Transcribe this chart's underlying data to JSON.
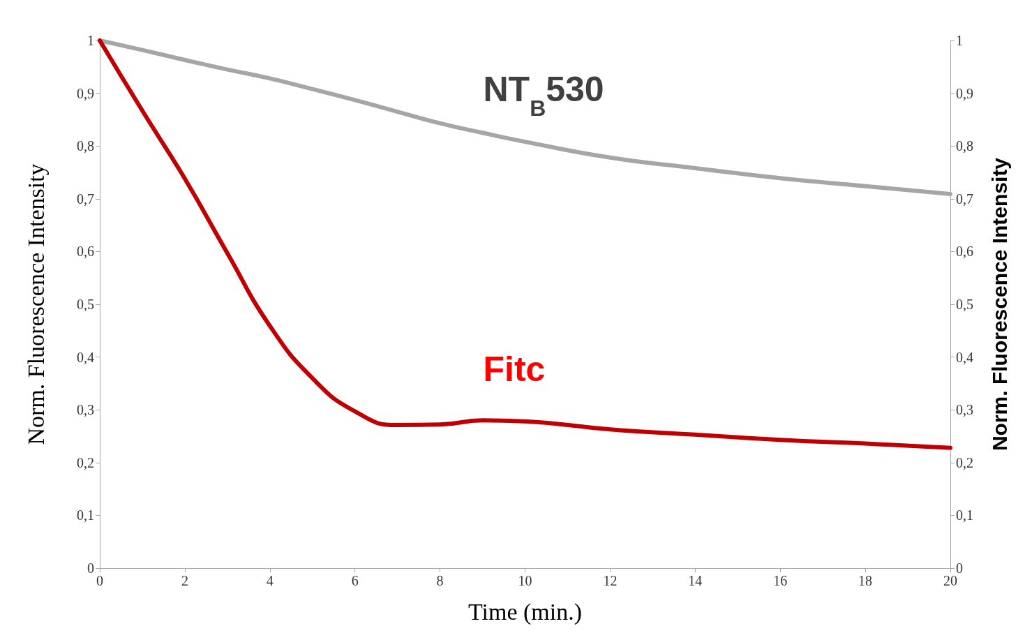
{
  "chart_data": {
    "type": "line",
    "xlabel": "Time (min.)",
    "ylabel": "Norm. Fluorescence Intensity",
    "y2label": "Norm. Fluorescence Intensity",
    "x": [
      0,
      1,
      2,
      3,
      4,
      5,
      6,
      7,
      8,
      9,
      10,
      12,
      14,
      16,
      18,
      20
    ],
    "series": [
      {
        "name": "NT$_{B}$530",
        "color": "#a6a6a6",
        "values": [
          1,
          0.982,
          0.963,
          0.945,
          0.928,
          0.908,
          0.887,
          0.865,
          0.843,
          0.825,
          0.808,
          0.778,
          0.758,
          0.739,
          0.724,
          0.709
        ]
      },
      {
        "name": "Fitc",
        "color": "#c00000",
        "values": [
          1,
          0.867,
          0.738,
          0.597,
          0.459,
          0.36,
          0.297,
          0.271,
          0.272,
          0.28,
          0.278,
          0.263,
          0.253,
          0.243,
          0.236,
          0.228
        ]
      }
    ],
    "xlim": [
      0,
      20
    ],
    "xticks": [
      0,
      2,
      4,
      6,
      8,
      10,
      12,
      14,
      16,
      18,
      20
    ],
    "ylim": [
      0,
      1
    ],
    "yticks": [
      0,
      {
        "value": 0.1,
        "label": "0,1"
      },
      {
        "value": 0.2,
        "label": "0,2"
      },
      {
        "value": 0.3,
        "label": "0,3"
      },
      {
        "value": 0.4,
        "label": "0,4"
      },
      {
        "value": 0.5,
        "label": "0,5"
      },
      {
        "value": 0.6,
        "label": "0,6"
      },
      {
        "value": 0.7,
        "label": "0,7"
      },
      {
        "value": 0.8,
        "label": "0,8"
      },
      {
        "value": 0.9,
        "label": "0,9"
      },
      1
    ],
    "y2lim": [
      0,
      1
    ],
    "y2ticks": [
      0,
      {
        "value": 0.1,
        "label": "0,1"
      },
      {
        "value": 0.2,
        "label": "0,2"
      },
      {
        "value": 0.3,
        "label": "0,3"
      },
      {
        "value": 0.4,
        "label": "0,4"
      },
      {
        "value": 0.5,
        "label": "0,5"
      },
      {
        "value": 0.6,
        "label": "0,6"
      },
      {
        "value": 0.7,
        "label": "0,7"
      },
      {
        "value": 0.8,
        "label": "0,8"
      },
      {
        "value": 0.9,
        "label": "0,9"
      },
      1
    ],
    "grid": false,
    "marker": "none",
    "line_style": "solid"
  }
}
